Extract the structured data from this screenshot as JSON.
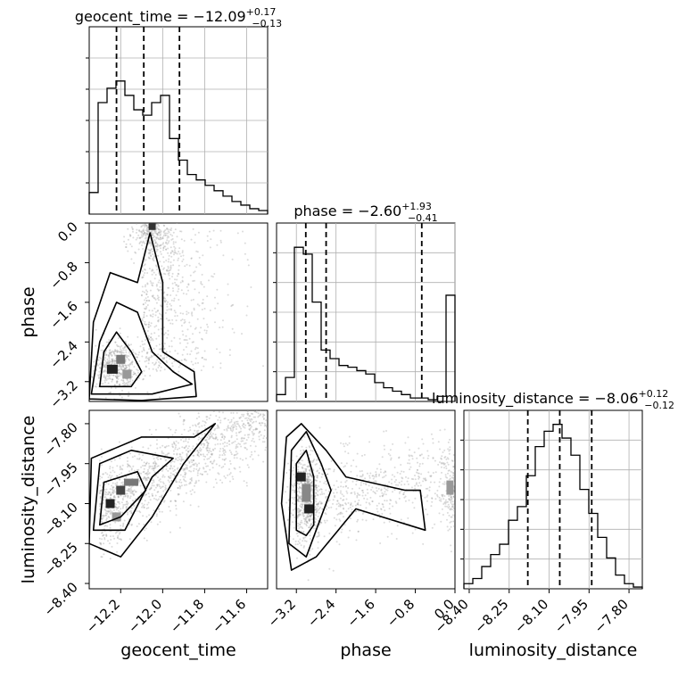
{
  "chart_data": {
    "type": "corner",
    "parameters": [
      "geocent_time",
      "phase",
      "luminosity_distance"
    ],
    "ranges": {
      "geocent_time": [
        -12.35,
        -11.5
      ],
      "phase": [
        -3.6,
        0.0
      ],
      "luminosity_distance": [
        -8.42,
        -7.75
      ]
    },
    "ticks": {
      "geocent_time": [
        -12.2,
        -12.0,
        -11.8,
        -11.6
      ],
      "phase": [
        -3.2,
        -2.4,
        -1.6,
        -0.8,
        0.0
      ],
      "luminosity_distance": [
        -8.4,
        -8.25,
        -8.1,
        -7.95,
        -7.8
      ]
    },
    "tick_labels": {
      "geocent_time": [
        "−12.2",
        "−12.0",
        "−11.8",
        "−11.6"
      ],
      "phase": [
        "−3.2",
        "−2.4",
        "−1.6",
        "−0.8",
        "0.0"
      ],
      "luminosity_distance": [
        "−8.40",
        "−8.25",
        "−8.10",
        "−7.95",
        "−7.80"
      ]
    },
    "titles": [
      {
        "param": "geocent_time",
        "main": "geocent_time = −12.09",
        "plus": "+0.17",
        "minus": "−0.13"
      },
      {
        "param": "phase",
        "main": "phase = −2.60",
        "plus": "+1.93",
        "minus": "−0.41"
      },
      {
        "param": "luminosity_distance",
        "main": "luminosity_distance = −8.06",
        "plus": "+0.12",
        "minus": "−0.12"
      }
    ],
    "quantiles": {
      "geocent_time": [
        -12.22,
        -12.09,
        -11.92
      ],
      "phase": [
        -3.01,
        -2.6,
        -0.67
      ],
      "luminosity_distance": [
        -8.18,
        -8.06,
        -7.94
      ]
    },
    "histograms": {
      "geocent_time": {
        "bins": 20,
        "counts": [
          0.12,
          0.62,
          0.7,
          0.74,
          0.66,
          0.58,
          0.55,
          0.62,
          0.66,
          0.42,
          0.3,
          0.22,
          0.19,
          0.16,
          0.13,
          0.1,
          0.07,
          0.05,
          0.03,
          0.02
        ]
      },
      "phase": {
        "bins": 20,
        "counts": [
          0.04,
          0.14,
          0.9,
          0.86,
          0.58,
          0.3,
          0.25,
          0.21,
          0.2,
          0.18,
          0.16,
          0.11,
          0.08,
          0.06,
          0.04,
          0.02,
          0.02,
          0.01,
          0.03,
          0.62
        ]
      },
      "luminosity_distance": {
        "bins": 20,
        "counts": [
          0.03,
          0.06,
          0.13,
          0.2,
          0.26,
          0.4,
          0.48,
          0.66,
          0.83,
          0.92,
          0.96,
          0.88,
          0.78,
          0.58,
          0.44,
          0.3,
          0.18,
          0.08,
          0.03,
          0.01
        ]
      }
    },
    "grid": true,
    "axis_labels": [
      "geocent_time",
      "phase",
      "luminosity_distance"
    ]
  }
}
